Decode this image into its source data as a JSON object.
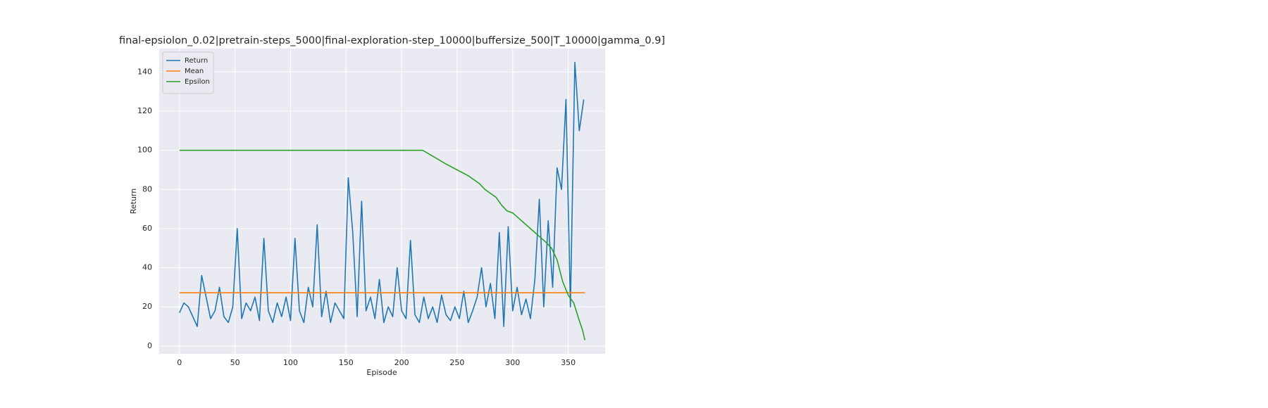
{
  "chart_data": {
    "type": "line",
    "title": "final-epsiolon_0.02|pretrain-steps_5000|final-exploration-step_10000|buffersize_500|T_10000|gamma_0.9]",
    "x_label": "Episode",
    "y_label": "Return",
    "xlim": [
      -18.25,
      383.25
    ],
    "ylim": [
      -4,
      152
    ],
    "xticks": [
      0,
      50,
      100,
      150,
      200,
      250,
      300,
      350
    ],
    "yticks": [
      0,
      20,
      40,
      60,
      80,
      100,
      120,
      140
    ],
    "grid": true,
    "legend": "upper-left",
    "series": [
      {
        "name": "Return",
        "color": "#1f77b4",
        "x": [
          0,
          4,
          8,
          12,
          16,
          20,
          24,
          28,
          32,
          36,
          40,
          44,
          48,
          52,
          56,
          60,
          64,
          68,
          72,
          76,
          80,
          84,
          88,
          92,
          96,
          100,
          104,
          108,
          112,
          116,
          120,
          124,
          128,
          132,
          136,
          140,
          144,
          148,
          152,
          156,
          160,
          164,
          168,
          172,
          176,
          180,
          184,
          188,
          192,
          196,
          200,
          204,
          208,
          212,
          216,
          220,
          224,
          228,
          232,
          236,
          240,
          244,
          248,
          252,
          256,
          260,
          264,
          268,
          272,
          276,
          280,
          284,
          288,
          292,
          296,
          300,
          304,
          308,
          312,
          316,
          320,
          324,
          328,
          332,
          336,
          340,
          344,
          348,
          352,
          356,
          360,
          364
        ],
        "values": [
          17,
          22,
          20,
          15,
          10,
          36,
          25,
          14,
          18,
          30,
          15,
          12,
          20,
          60,
          14,
          22,
          18,
          25,
          13,
          55,
          18,
          12,
          22,
          15,
          25,
          13,
          55,
          18,
          12,
          30,
          20,
          62,
          15,
          28,
          12,
          22,
          18,
          14,
          86,
          58,
          15,
          74,
          18,
          25,
          14,
          34,
          12,
          20,
          15,
          40,
          18,
          14,
          54,
          16,
          12,
          25,
          14,
          20,
          12,
          26,
          16,
          13,
          20,
          14,
          28,
          12,
          18,
          25,
          40,
          20,
          32,
          14,
          58,
          10,
          61,
          18,
          30,
          16,
          24,
          14,
          34,
          75,
          20,
          64,
          30,
          91,
          80,
          126,
          20,
          145,
          110,
          126
        ]
      },
      {
        "name": "Mean",
        "color": "#ff7f0e",
        "x": [
          0,
          365
        ],
        "values": [
          27.2,
          27.2
        ]
      },
      {
        "name": "Epsilon",
        "color": "#2ca02c",
        "x": [
          0,
          219,
          225,
          240,
          250,
          260,
          270,
          275,
          280,
          285,
          290,
          295,
          300,
          310,
          320,
          330,
          335,
          340,
          345,
          350,
          355,
          360,
          363,
          365
        ],
        "values": [
          100,
          100,
          98,
          93,
          90,
          87,
          83,
          80,
          78,
          76,
          72,
          69,
          68,
          63,
          58,
          53,
          50,
          44,
          33,
          26,
          22,
          13,
          8,
          3
        ]
      }
    ]
  }
}
